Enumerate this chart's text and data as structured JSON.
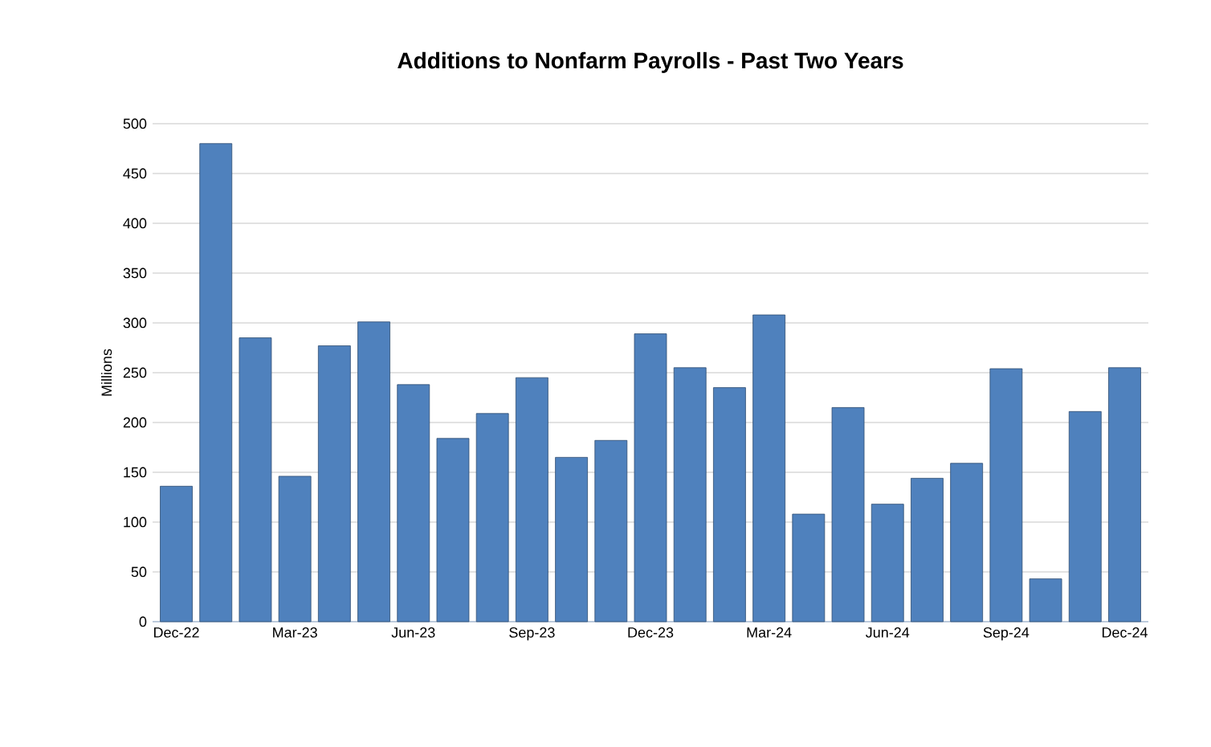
{
  "chart_data": {
    "type": "bar",
    "title": "Additions to Nonfarm Payrolls - Past Two Years",
    "ylabel": "Millions",
    "categories": [
      "Dec-22",
      null,
      null,
      "Mar-23",
      null,
      null,
      "Jun-23",
      null,
      null,
      "Sep-23",
      null,
      null,
      "Dec-23",
      null,
      null,
      "Mar-24",
      null,
      null,
      "Jun-24",
      null,
      null,
      "Sep-24",
      null,
      null,
      "Dec-24"
    ],
    "values": [
      136,
      480,
      285,
      146,
      277,
      301,
      238,
      184,
      209,
      245,
      165,
      182,
      289,
      255,
      235,
      308,
      108,
      215,
      118,
      144,
      159,
      254,
      43,
      211,
      255
    ],
    "color": "#4f81bd",
    "ylim": [
      0,
      500
    ],
    "yticks": [
      0,
      50,
      100,
      150,
      200,
      250,
      300,
      350,
      400,
      450,
      500
    ],
    "grid": "y"
  }
}
